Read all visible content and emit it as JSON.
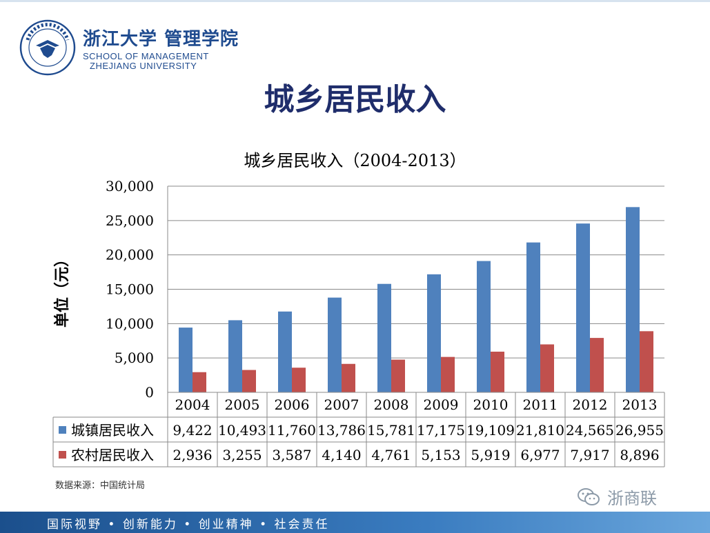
{
  "header": {
    "school_cn": "浙江大学 管理学院",
    "school_en_line1": "SCHOOL OF MANAGEMENT",
    "school_en_line2": "ZHEJIANG UNIVERSITY"
  },
  "slide_title": "城乡居民收入",
  "chart_data": {
    "type": "bar",
    "title": "城乡居民收入（2004-2013）",
    "ylabel": "单位（元）",
    "xlabel": "",
    "ylim": [
      0,
      30000
    ],
    "yticks": [
      "30,000",
      "25,000",
      "20,000",
      "15,000",
      "10,000",
      "5,000",
      "0"
    ],
    "ytick_values": [
      30000,
      25000,
      20000,
      15000,
      10000,
      5000,
      0
    ],
    "categories": [
      "2004",
      "2005",
      "2006",
      "2007",
      "2008",
      "2009",
      "2010",
      "2011",
      "2012",
      "2013"
    ],
    "series": [
      {
        "name": "城镇居民收入",
        "color": "#4f81bd",
        "values": [
          9422,
          10493,
          11760,
          13786,
          15781,
          17175,
          19109,
          21810,
          24565,
          26955
        ],
        "labels": [
          "9,422",
          "10,493",
          "11,760",
          "13,786",
          "15,781",
          "17,175",
          "19,109",
          "21,810",
          "24,565",
          "26,955"
        ]
      },
      {
        "name": "农村居民收入",
        "color": "#c0504d",
        "values": [
          2936,
          3255,
          3587,
          4140,
          4761,
          5153,
          5919,
          6977,
          7917,
          8896
        ],
        "labels": [
          "2,936",
          "3,255",
          "3,587",
          "4,140",
          "4,761",
          "5,153",
          "5,919",
          "6,977",
          "7,917",
          "8,896"
        ]
      }
    ],
    "grid": true,
    "legend": "data-table"
  },
  "source_note": "数据来源：中国统计局",
  "watermark": "浙商联",
  "footer": "国际视野 • 创新能力 • 创业精神 • 社会责任"
}
